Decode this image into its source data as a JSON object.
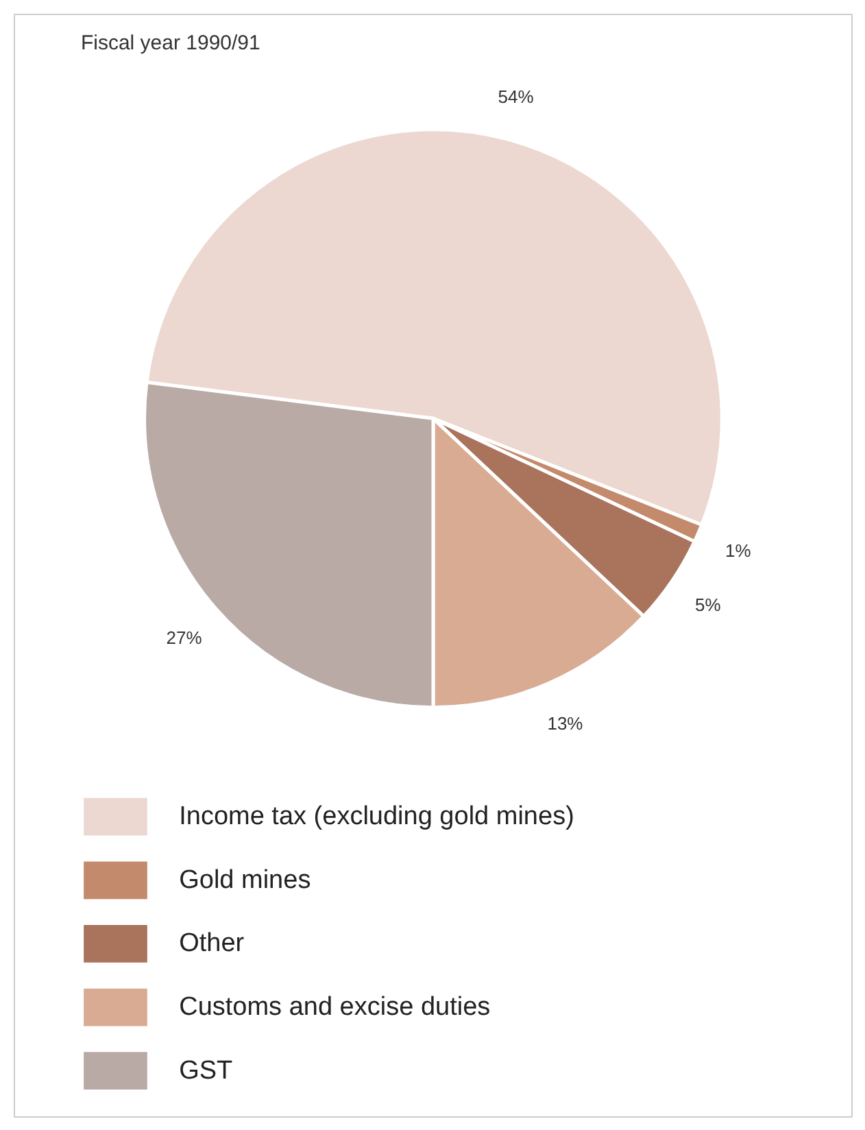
{
  "chart_data": {
    "type": "pie",
    "title": "Fiscal year 1990/91",
    "categories": [
      "Income tax (excluding gold mines)",
      "Gold mines",
      "Other",
      "Customs and excise duties",
      "GST"
    ],
    "values": [
      54,
      1,
      5,
      13,
      27
    ],
    "colors": [
      "#ecd8d0",
      "#c48a6c",
      "#a9735c",
      "#d9ab92",
      "#b9aaa6"
    ],
    "value_labels": [
      "54%",
      "1%",
      "5%",
      "13%",
      "27%"
    ],
    "legend": "bottom"
  }
}
